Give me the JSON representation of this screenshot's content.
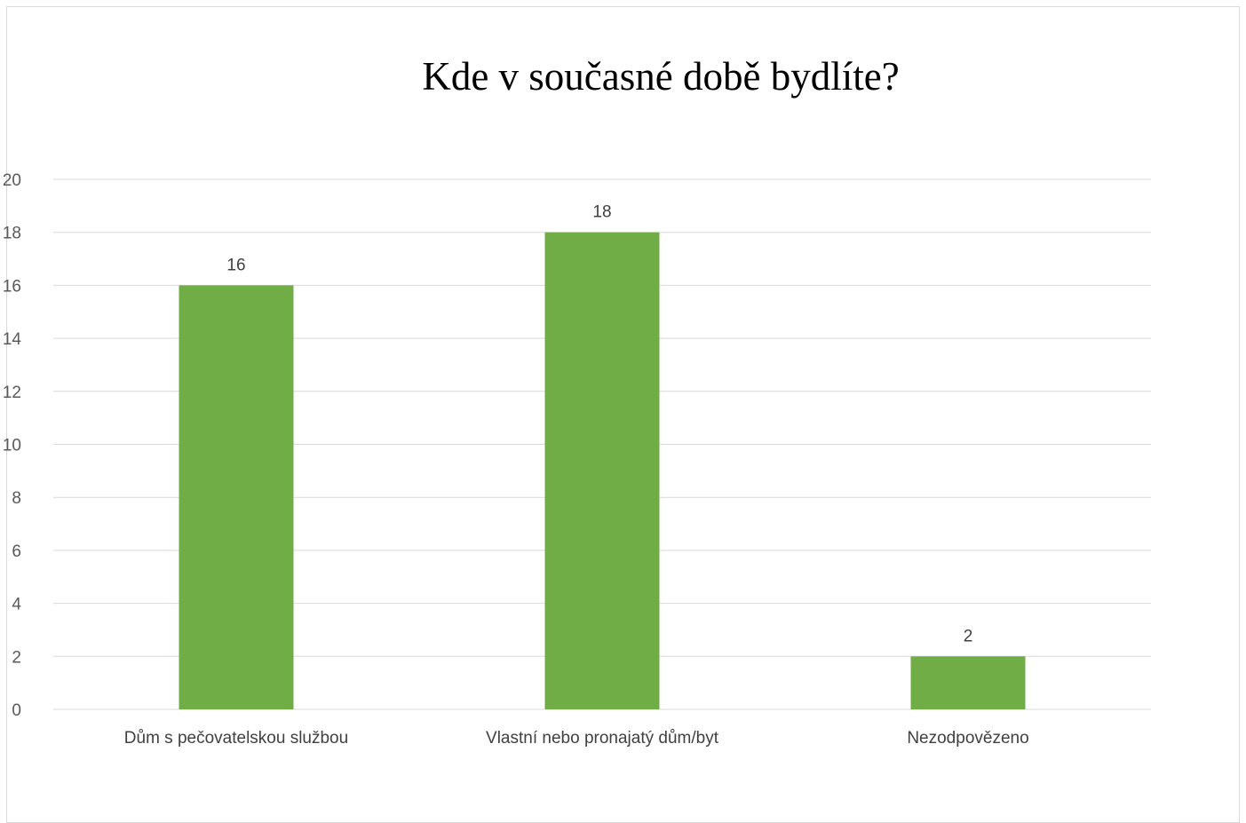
{
  "chart_data": {
    "type": "bar",
    "title": "Kde v současné době bydlíte?",
    "categories": [
      "Dům s pečovatelskou službou",
      "Vlastní nebo pronajatý dům/byt",
      "Nezodpovězeno"
    ],
    "values": [
      16,
      18,
      2
    ],
    "ylim": [
      0,
      20
    ],
    "yticks": [
      0,
      2,
      4,
      6,
      8,
      10,
      12,
      14,
      16,
      18,
      20
    ],
    "grid": true,
    "data_labels": true,
    "legend": "none",
    "colors": {
      "bar": "#70ad47",
      "grid": "#d9d9d9",
      "axis": "#d9d9d9"
    }
  }
}
